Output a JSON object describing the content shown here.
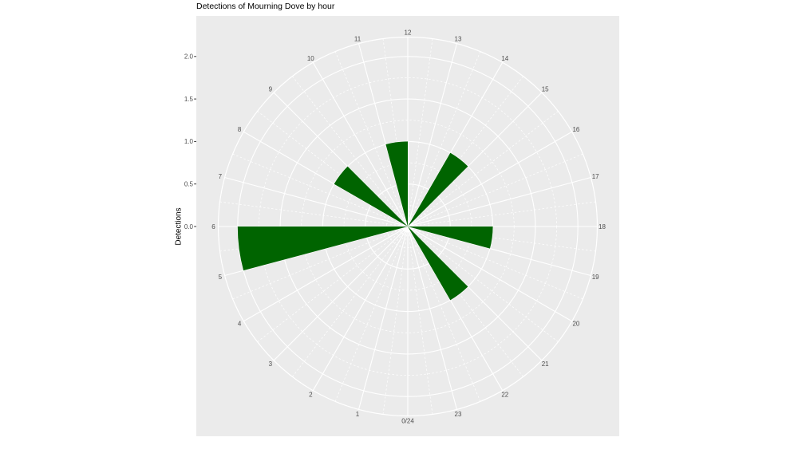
{
  "chart_data": {
    "type": "bar",
    "coordinates": "polar",
    "title": "Detections of Mourning Dove by hour",
    "ylabel": "Detections",
    "theta_axis": {
      "unit": "hour of day",
      "zero_position": "bottom",
      "direction": "clockwise",
      "labels": [
        "0/24",
        "1",
        "2",
        "3",
        "4",
        "5",
        "6",
        "7",
        "8",
        "9",
        "10",
        "11",
        "12",
        "13",
        "14",
        "15",
        "16",
        "17",
        "18",
        "19",
        "20",
        "21",
        "22",
        "23"
      ]
    },
    "radial_axis": {
      "ticks": [
        0.0,
        0.5,
        1.0,
        1.5,
        2.0
      ],
      "tick_labels": [
        "0.0",
        "0.5",
        "1.0",
        "1.5",
        "2.0"
      ],
      "minor_ticks": [
        0.25,
        0.75,
        1.25,
        1.75
      ],
      "outer_limit": 2.23
    },
    "categories": [
      0,
      1,
      2,
      3,
      4,
      5,
      6,
      7,
      8,
      9,
      10,
      11,
      12,
      13,
      14,
      15,
      16,
      17,
      18,
      19,
      20,
      21,
      22,
      23
    ],
    "values": [
      0,
      0,
      0,
      0,
      0,
      2,
      0,
      0,
      1,
      0,
      0,
      1,
      0,
      0,
      1,
      0,
      0,
      0,
      1,
      0,
      0,
      1,
      0,
      0
    ],
    "bins": [
      {
        "hour_bin": "5-6",
        "count": 2
      },
      {
        "hour_bin": "8-9",
        "count": 1
      },
      {
        "hour_bin": "11-12",
        "count": 1
      },
      {
        "hour_bin": "14-15",
        "count": 1
      },
      {
        "hour_bin": "18-19",
        "count": 1
      },
      {
        "hour_bin": "21-22",
        "count": 1
      }
    ],
    "legend": "none",
    "grid": "on",
    "colors": {
      "bar": "#006400",
      "panel_background": "#EBEBEB",
      "grid_line": "#FFFFFF",
      "axis_text": "#4D4D4D",
      "tick_mark": "#333333",
      "title_text": "#000000"
    }
  }
}
